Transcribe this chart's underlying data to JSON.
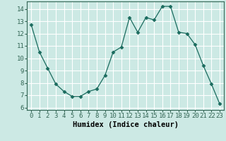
{
  "x": [
    0,
    1,
    2,
    3,
    4,
    5,
    6,
    7,
    8,
    9,
    10,
    11,
    12,
    13,
    14,
    15,
    16,
    17,
    18,
    19,
    20,
    21,
    22,
    23
  ],
  "y": [
    12.7,
    10.5,
    9.2,
    7.9,
    7.3,
    6.9,
    6.9,
    7.3,
    7.5,
    8.6,
    10.5,
    10.9,
    13.3,
    12.1,
    13.3,
    13.1,
    14.2,
    14.2,
    12.1,
    12.0,
    11.1,
    9.4,
    7.9,
    6.3
  ],
  "xlabel": "Humidex (Indice chaleur)",
  "xlim": [
    -0.5,
    23.5
  ],
  "ylim": [
    5.8,
    14.6
  ],
  "yticks": [
    6,
    7,
    8,
    9,
    10,
    11,
    12,
    13,
    14
  ],
  "xticks": [
    0,
    1,
    2,
    3,
    4,
    5,
    6,
    7,
    8,
    9,
    10,
    11,
    12,
    13,
    14,
    15,
    16,
    17,
    18,
    19,
    20,
    21,
    22,
    23
  ],
  "line_color": "#1a6b5e",
  "marker": "D",
  "marker_size": 2.5,
  "bg_color": "#cce9e4",
  "grid_color": "#ffffff",
  "tick_label_fontsize": 6.5,
  "xlabel_fontsize": 7.5
}
